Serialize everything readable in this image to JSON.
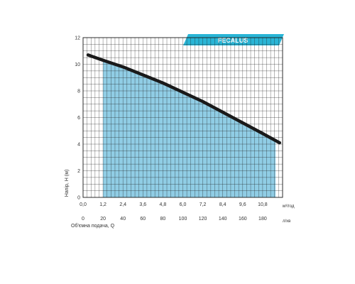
{
  "chart_data": {
    "type": "line",
    "title": "FECALUS",
    "ylabel": "Напір, H (м)",
    "xlabel": "Об'ємна подача, Q",
    "x_unit_top": "м³/год",
    "x_unit_bottom": "л/хв",
    "x_ticks_top": [
      "0,0",
      "1,2",
      "2,4",
      "3,6",
      "4,8",
      "6,0",
      "7,2",
      "8,4",
      "9,6",
      "10,8"
    ],
    "x_ticks_bottom": [
      "0",
      "20",
      "40",
      "60",
      "80",
      "100",
      "120",
      "140",
      "160",
      "180"
    ],
    "y_ticks": [
      "0",
      "2",
      "4",
      "6",
      "8",
      "10",
      "12"
    ],
    "xlim_lpm": [
      0,
      200
    ],
    "ylim": [
      0,
      12
    ],
    "shaded_range_lpm": [
      20,
      193
    ],
    "grid": true,
    "series": [
      {
        "x_lpm": [
          5,
          20,
          40,
          60,
          80,
          100,
          120,
          140,
          160,
          180,
          197
        ],
        "y": [
          10.7,
          10.3,
          9.8,
          9.2,
          8.6,
          7.9,
          7.2,
          6.4,
          5.6,
          4.8,
          4.1
        ]
      }
    ],
    "colors": {
      "curve": "#1a1a1a",
      "fill": "#7cc4e0",
      "badge": "#29b5d6",
      "grid": "#1e1e1e",
      "text": "#333333"
    }
  }
}
